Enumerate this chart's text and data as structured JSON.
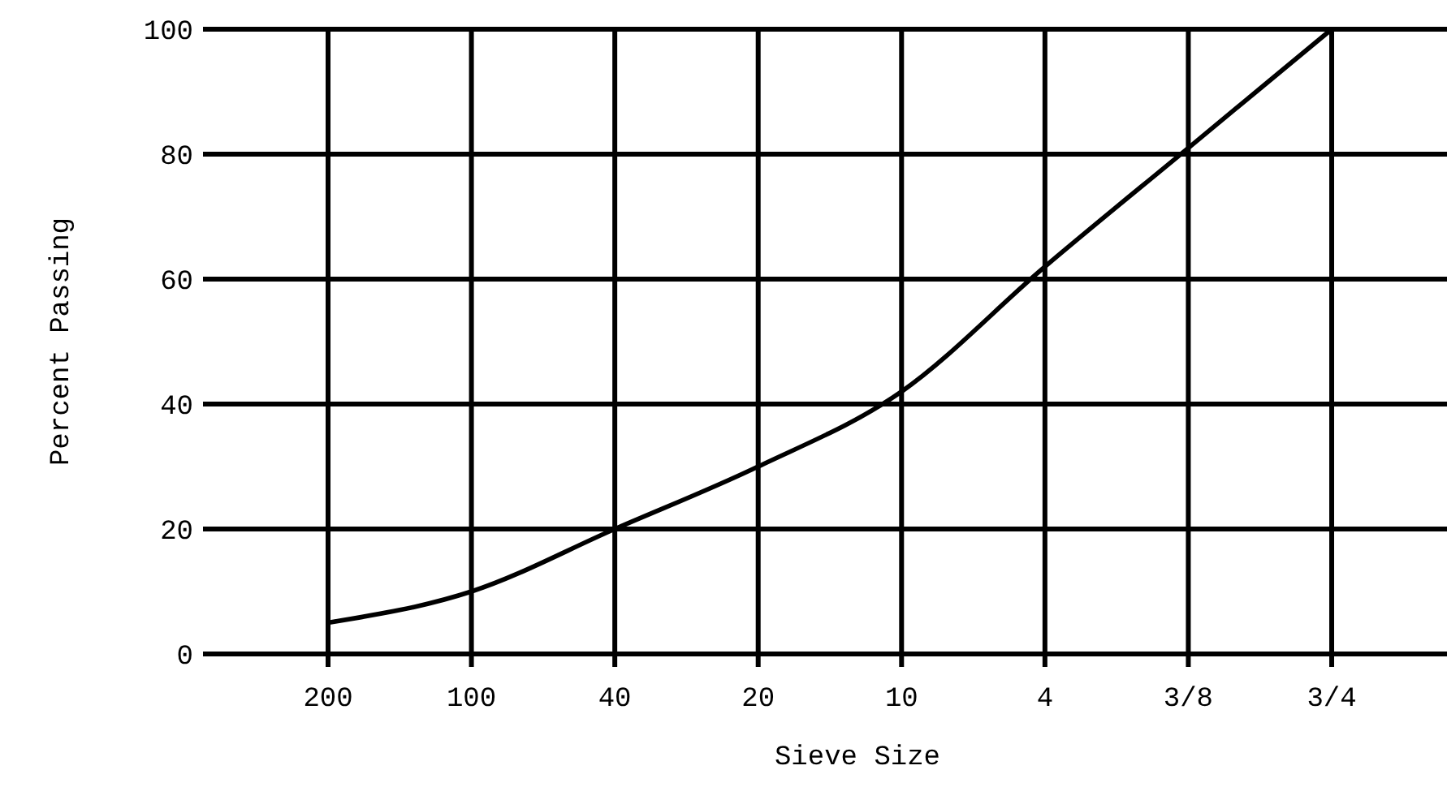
{
  "chart_data": {
    "type": "line",
    "xlabel": "Sieve Size",
    "ylabel": "Percent Passing",
    "categories": [
      "200",
      "100",
      "40",
      "20",
      "10",
      "4",
      "3/8",
      "3/4"
    ],
    "series": [
      {
        "color": "#000000",
        "values": [
          5,
          10,
          20,
          30,
          42,
          62,
          81,
          100
        ]
      }
    ],
    "ylim": [
      0,
      100
    ],
    "yticks": [
      0,
      20,
      40,
      60,
      80,
      100
    ],
    "grid": true,
    "marker": "none",
    "line_style": "solid"
  }
}
